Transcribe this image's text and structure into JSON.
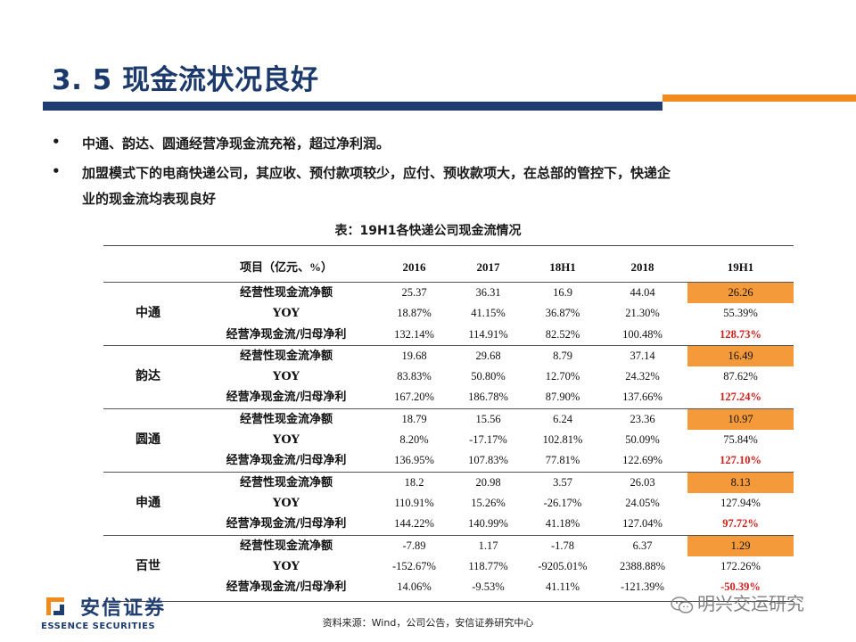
{
  "header": {
    "title": "3. 5 现金流状况良好"
  },
  "bullets": [
    {
      "marker": "•",
      "lines": [
        "中通、韵达、圆通经营净现金流充裕，超过净利润。"
      ]
    },
    {
      "marker": "•",
      "lines": [
        "加盟模式下的电商快递公司，其应收、预付款项较少，应付、预收款项大，在总部的管控下，快递企",
        "业的现金流均表现良好"
      ]
    }
  ],
  "table": {
    "caption": "表：19H1各快递公司现金流情况",
    "headers": [
      "项目（亿元、%）",
      "2016",
      "2017",
      "18H1",
      "2018",
      "19H1"
    ],
    "groups": [
      {
        "company": "中通",
        "rows": [
          {
            "item": "经营性现金流净额",
            "values": [
              "25.37",
              "36.31",
              "16.9",
              "44.04",
              "26.26"
            ]
          },
          {
            "item": "YOY",
            "values": [
              "18.87%",
              "41.15%",
              "36.87%",
              "21.30%",
              "55.39%"
            ]
          },
          {
            "item": "经营净现金流/归母净利",
            "values": [
              "132.14%",
              "114.91%",
              "82.52%",
              "100.48%",
              "128.73%"
            ]
          }
        ]
      },
      {
        "company": "韵达",
        "rows": [
          {
            "item": "经营性现金流净额",
            "values": [
              "19.68",
              "29.68",
              "8.79",
              "37.14",
              "16.49"
            ]
          },
          {
            "item": "YOY",
            "values": [
              "83.83%",
              "50.80%",
              "12.70%",
              "24.32%",
              "87.62%"
            ]
          },
          {
            "item": "经营净现金流/归母净利",
            "values": [
              "167.20%",
              "186.78%",
              "87.90%",
              "137.66%",
              "127.24%"
            ]
          }
        ]
      },
      {
        "company": "圆通",
        "rows": [
          {
            "item": "经营性现金流净额",
            "values": [
              "18.79",
              "15.56",
              "6.24",
              "23.36",
              "10.97"
            ]
          },
          {
            "item": "YOY",
            "values": [
              "8.20%",
              "-17.17%",
              "102.81%",
              "50.09%",
              "75.84%"
            ]
          },
          {
            "item": "经营净现金流/归母净利",
            "values": [
              "136.95%",
              "107.83%",
              "77.81%",
              "122.69%",
              "127.10%"
            ]
          }
        ]
      },
      {
        "company": "申通",
        "rows": [
          {
            "item": "经营性现金流净额",
            "values": [
              "18.2",
              "20.98",
              "3.57",
              "26.03",
              "8.13"
            ]
          },
          {
            "item": "YOY",
            "values": [
              "110.91%",
              "15.26%",
              "-26.17%",
              "24.05%",
              "127.94%"
            ]
          },
          {
            "item": "经营净现金流/归母净利",
            "values": [
              "144.22%",
              "140.99%",
              "41.18%",
              "127.04%",
              "97.72%"
            ]
          }
        ]
      },
      {
        "company": "百世",
        "rows": [
          {
            "item": "经营性现金流净额",
            "values": [
              "-7.89",
              "1.17",
              "-1.78",
              "6.37",
              "1.29"
            ]
          },
          {
            "item": "YOY",
            "values": [
              "-152.67%",
              "118.77%",
              "-9205.01%",
              "2388.88%",
              "172.26%"
            ]
          },
          {
            "item": "经营净现金流/归母净利",
            "values": [
              "14.06%",
              "-9.53%",
              "41.11%",
              "-121.39%",
              "-50.39%"
            ]
          }
        ]
      }
    ]
  },
  "footer": {
    "source": "资料来源：Wind，公司公告，安信证券研究中心",
    "logo_name": "安信证券",
    "logo_sub": "ESSENCE SECURITIES",
    "watermark": "明兴交运研究"
  },
  "colors": {
    "title": "#1b3a6b",
    "bar_blue": "#1f3d6e",
    "bar_orange": "#f08c1e",
    "cell_highlight": "#f49a3a",
    "value_highlight": "#d0201c"
  },
  "icons": {
    "logo": "essence-logo-icon",
    "watermark": "wechat-icon"
  }
}
